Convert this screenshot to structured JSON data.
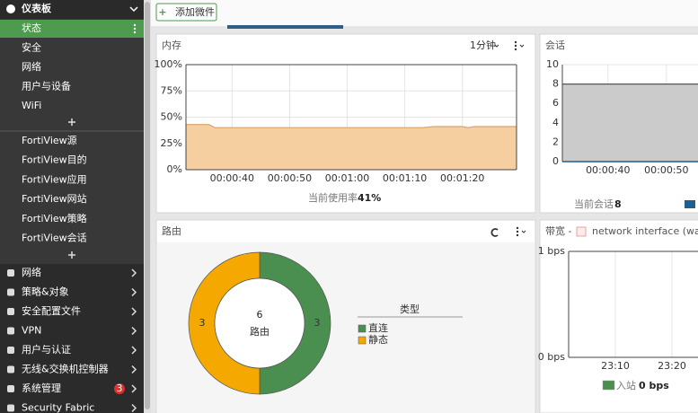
{
  "sidebar": {
    "header": "仪表板",
    "dashboard_items": [
      "状态",
      "安全",
      "网络",
      "用户与设备",
      "WiFi"
    ],
    "fortiview_items": [
      "FortiView源",
      "FortiView目的",
      "FortiView应用",
      "FortiView网站",
      "FortiView策略",
      "FortiView会话"
    ],
    "menu": [
      "网络",
      "策略&对象",
      "安全配置文件",
      "VPN",
      "用户与认证",
      "无线&交换机控制器",
      "系统管理",
      "Security Fabric"
    ],
    "badge": 3
  },
  "toolbar": {
    "add_widget": "添加微件"
  },
  "widgets": [
    {
      "title": "内存",
      "interval": "1分钟",
      "chart_data": {
        "type": "area",
        "color": "#f5cfa0",
        "line_color": "#d9a46c",
        "x": [
          32,
          36,
          37,
          73,
          75,
          80,
          81,
          82,
          89.4
        ],
        "values": [
          43,
          43,
          40,
          40,
          41,
          41,
          40,
          41,
          41
        ],
        "xlim": [
          32,
          89.4
        ],
        "ylim": [
          0,
          100
        ],
        "xticks": [
          {
            "value": 40,
            "label": "00:00:40"
          },
          {
            "value": 50,
            "label": "00:00:50"
          },
          {
            "value": 60,
            "label": "00:01:00"
          },
          {
            "value": 70,
            "label": "00:01:10"
          },
          {
            "value": 80,
            "label": "00:01:20"
          }
        ],
        "yticks": [
          {
            "value": 0,
            "label": "0%"
          },
          {
            "value": 25,
            "label": "25%"
          },
          {
            "value": 50,
            "label": "50%"
          },
          {
            "value": 75,
            "label": "75%"
          },
          {
            "value": 100,
            "label": "100%"
          }
        ]
      },
      "footer_label": "当前使用率",
      "footer_value": "41%"
    },
    {
      "title": "会话",
      "chart_data": {
        "type": "area",
        "color": "#cbcbcb",
        "line_color": "#555555",
        "x": [
          32.2,
          55.4
        ],
        "values": [
          8,
          8
        ],
        "xlim": [
          32.2,
          55.4
        ],
        "ylim": [
          0,
          10
        ],
        "xticks": [
          {
            "value": 40,
            "label": "00:00:40"
          },
          {
            "value": 50,
            "label": "00:00:50"
          }
        ],
        "yticks": [
          0,
          2,
          4,
          6,
          8,
          10
        ]
      },
      "footer_label": "当前会话",
      "footer_value": 8
    },
    {
      "title": "路由",
      "chart_data": {
        "type": "donut",
        "total": 6,
        "center_label": "路由",
        "legend_title": "类型",
        "categories": [
          "直连",
          "静态"
        ],
        "values": [
          3,
          3
        ],
        "colors": [
          "#4a8f50",
          "#f5a800"
        ]
      }
    },
    {
      "title": "带宽 -",
      "interface": "network interface (wa",
      "chart_data": {
        "type": "line",
        "xlim": [
          1381.75,
          1404.6
        ],
        "ylim": [
          0,
          1
        ],
        "xticks": [
          {
            "value": 1390,
            "label": "23:10"
          },
          {
            "value": 1400,
            "label": "23:20"
          }
        ],
        "yticks": [
          {
            "value": 0,
            "label": "0 bps"
          },
          {
            "value": 1,
            "label": "1 bps"
          }
        ]
      },
      "legend": "入站",
      "footer_value": "0 bps"
    }
  ]
}
